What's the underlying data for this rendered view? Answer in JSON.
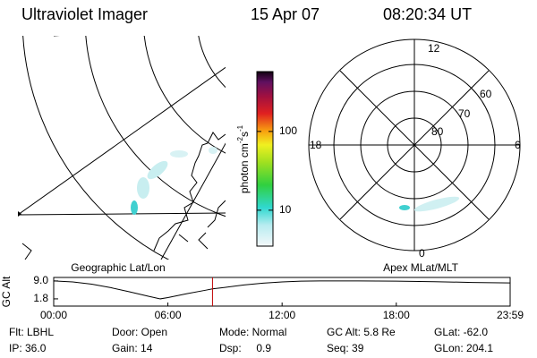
{
  "header": {
    "title": "Ultraviolet Imager",
    "date": "15 Apr 07",
    "time": "08:20:34 UT"
  },
  "panels": {
    "left": "Geographic Lat/Lon",
    "right": "Apex MLat/MLT"
  },
  "polar": {
    "mlt_top": "12",
    "mlt_left": "18",
    "mlt_right": "6",
    "mlt_bottom": "0",
    "lat_labels": [
      "60",
      "70",
      "80"
    ]
  },
  "colorbar": {
    "label": [
      "photon cm",
      "-2",
      "s",
      "-1"
    ],
    "log": true,
    "lim": [
      3.5,
      575
    ],
    "ticks": [
      10,
      100
    ]
  },
  "chart_data": {
    "type": "line",
    "ylabel": "GC Alt",
    "color": "#000000",
    "x": [
      0,
      1,
      2,
      3,
      4,
      5,
      5.6,
      6,
      7,
      8,
      8.343,
      9,
      10,
      11,
      12,
      13,
      14,
      15,
      16,
      17,
      18,
      20,
      22,
      23.983
    ],
    "values": [
      9.0,
      8.6,
      7.7,
      6.3,
      4.6,
      2.8,
      1.8,
      2.3,
      3.9,
      5.3,
      5.8,
      6.4,
      7.4,
      8.1,
      8.6,
      8.9,
      9.0,
      9.0,
      9.0,
      8.95,
      8.9,
      8.7,
      8.4,
      8.2
    ],
    "xlim": [
      0,
      23.983
    ],
    "xticks": [
      {
        "value": 0,
        "label": "00:00"
      },
      {
        "value": 6,
        "label": "06:00"
      },
      {
        "value": 12,
        "label": "12:00"
      },
      {
        "value": 18,
        "label": "18:00"
      },
      {
        "value": 23.983,
        "label": "23:59"
      }
    ],
    "ylim": [
      -1.1,
      10.4
    ],
    "yticks": [
      {
        "value": 9,
        "label": "9.0"
      },
      1.8
    ],
    "marker": {
      "x": 8.343,
      "color": "#c00000"
    }
  },
  "footer": {
    "rows": [
      [
        "Flt: LBHL",
        "Door: Open",
        "Mode: Normal",
        "GC Alt: 5.8 Re",
        "GLat: -62.0"
      ],
      [
        "IP: 36.0",
        "Gain: 14",
        "Dsp:     0.9",
        "Seq: 39",
        "GLon: 204.1"
      ]
    ]
  }
}
